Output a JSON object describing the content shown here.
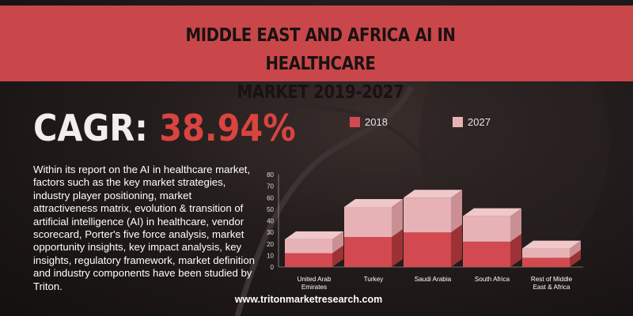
{
  "header": {
    "title": "MIDDLE EAST AND AFRICA AI IN HEALTHCARE\nMARKET 2019-2027"
  },
  "cagr": {
    "label": "CAGR:",
    "value": "38.94%"
  },
  "description": "Within its report on the AI in healthcare market, factors such as the key market strategies, industry player positioning, market attractiveness matrix, evolution & transition of artificial intelligence (AI) in healthcare, vendor scorecard, Porter's five force analysis, market opportunity insights, key impact analysis, key insights, regulatory framework, market definition and industry components have been studied by Triton.",
  "footer": {
    "website": "www.tritonmarketresearch.com"
  },
  "colors": {
    "accent": "#c9474a",
    "series_2018": "#d24a4f",
    "series_2027": "#e7b2b5"
  },
  "chart_data": {
    "type": "bar",
    "stacked": true,
    "style": "3d",
    "categories": [
      "United Arab\nEmirates",
      "Turkey",
      "Saudi Arabia",
      "South Africa",
      "Rest of Middle\nEast & Africa"
    ],
    "series": [
      {
        "name": "2018",
        "values": [
          12,
          26,
          30,
          22,
          8
        ]
      },
      {
        "name": "2027",
        "values": [
          12,
          26,
          30,
          22,
          8
        ]
      }
    ],
    "xlabel": "",
    "ylabel": "",
    "ylim": [
      0,
      80
    ],
    "yticks": [
      0,
      10,
      20,
      30,
      40,
      50,
      60,
      70,
      80
    ],
    "grid": false,
    "legend_position": "top"
  }
}
